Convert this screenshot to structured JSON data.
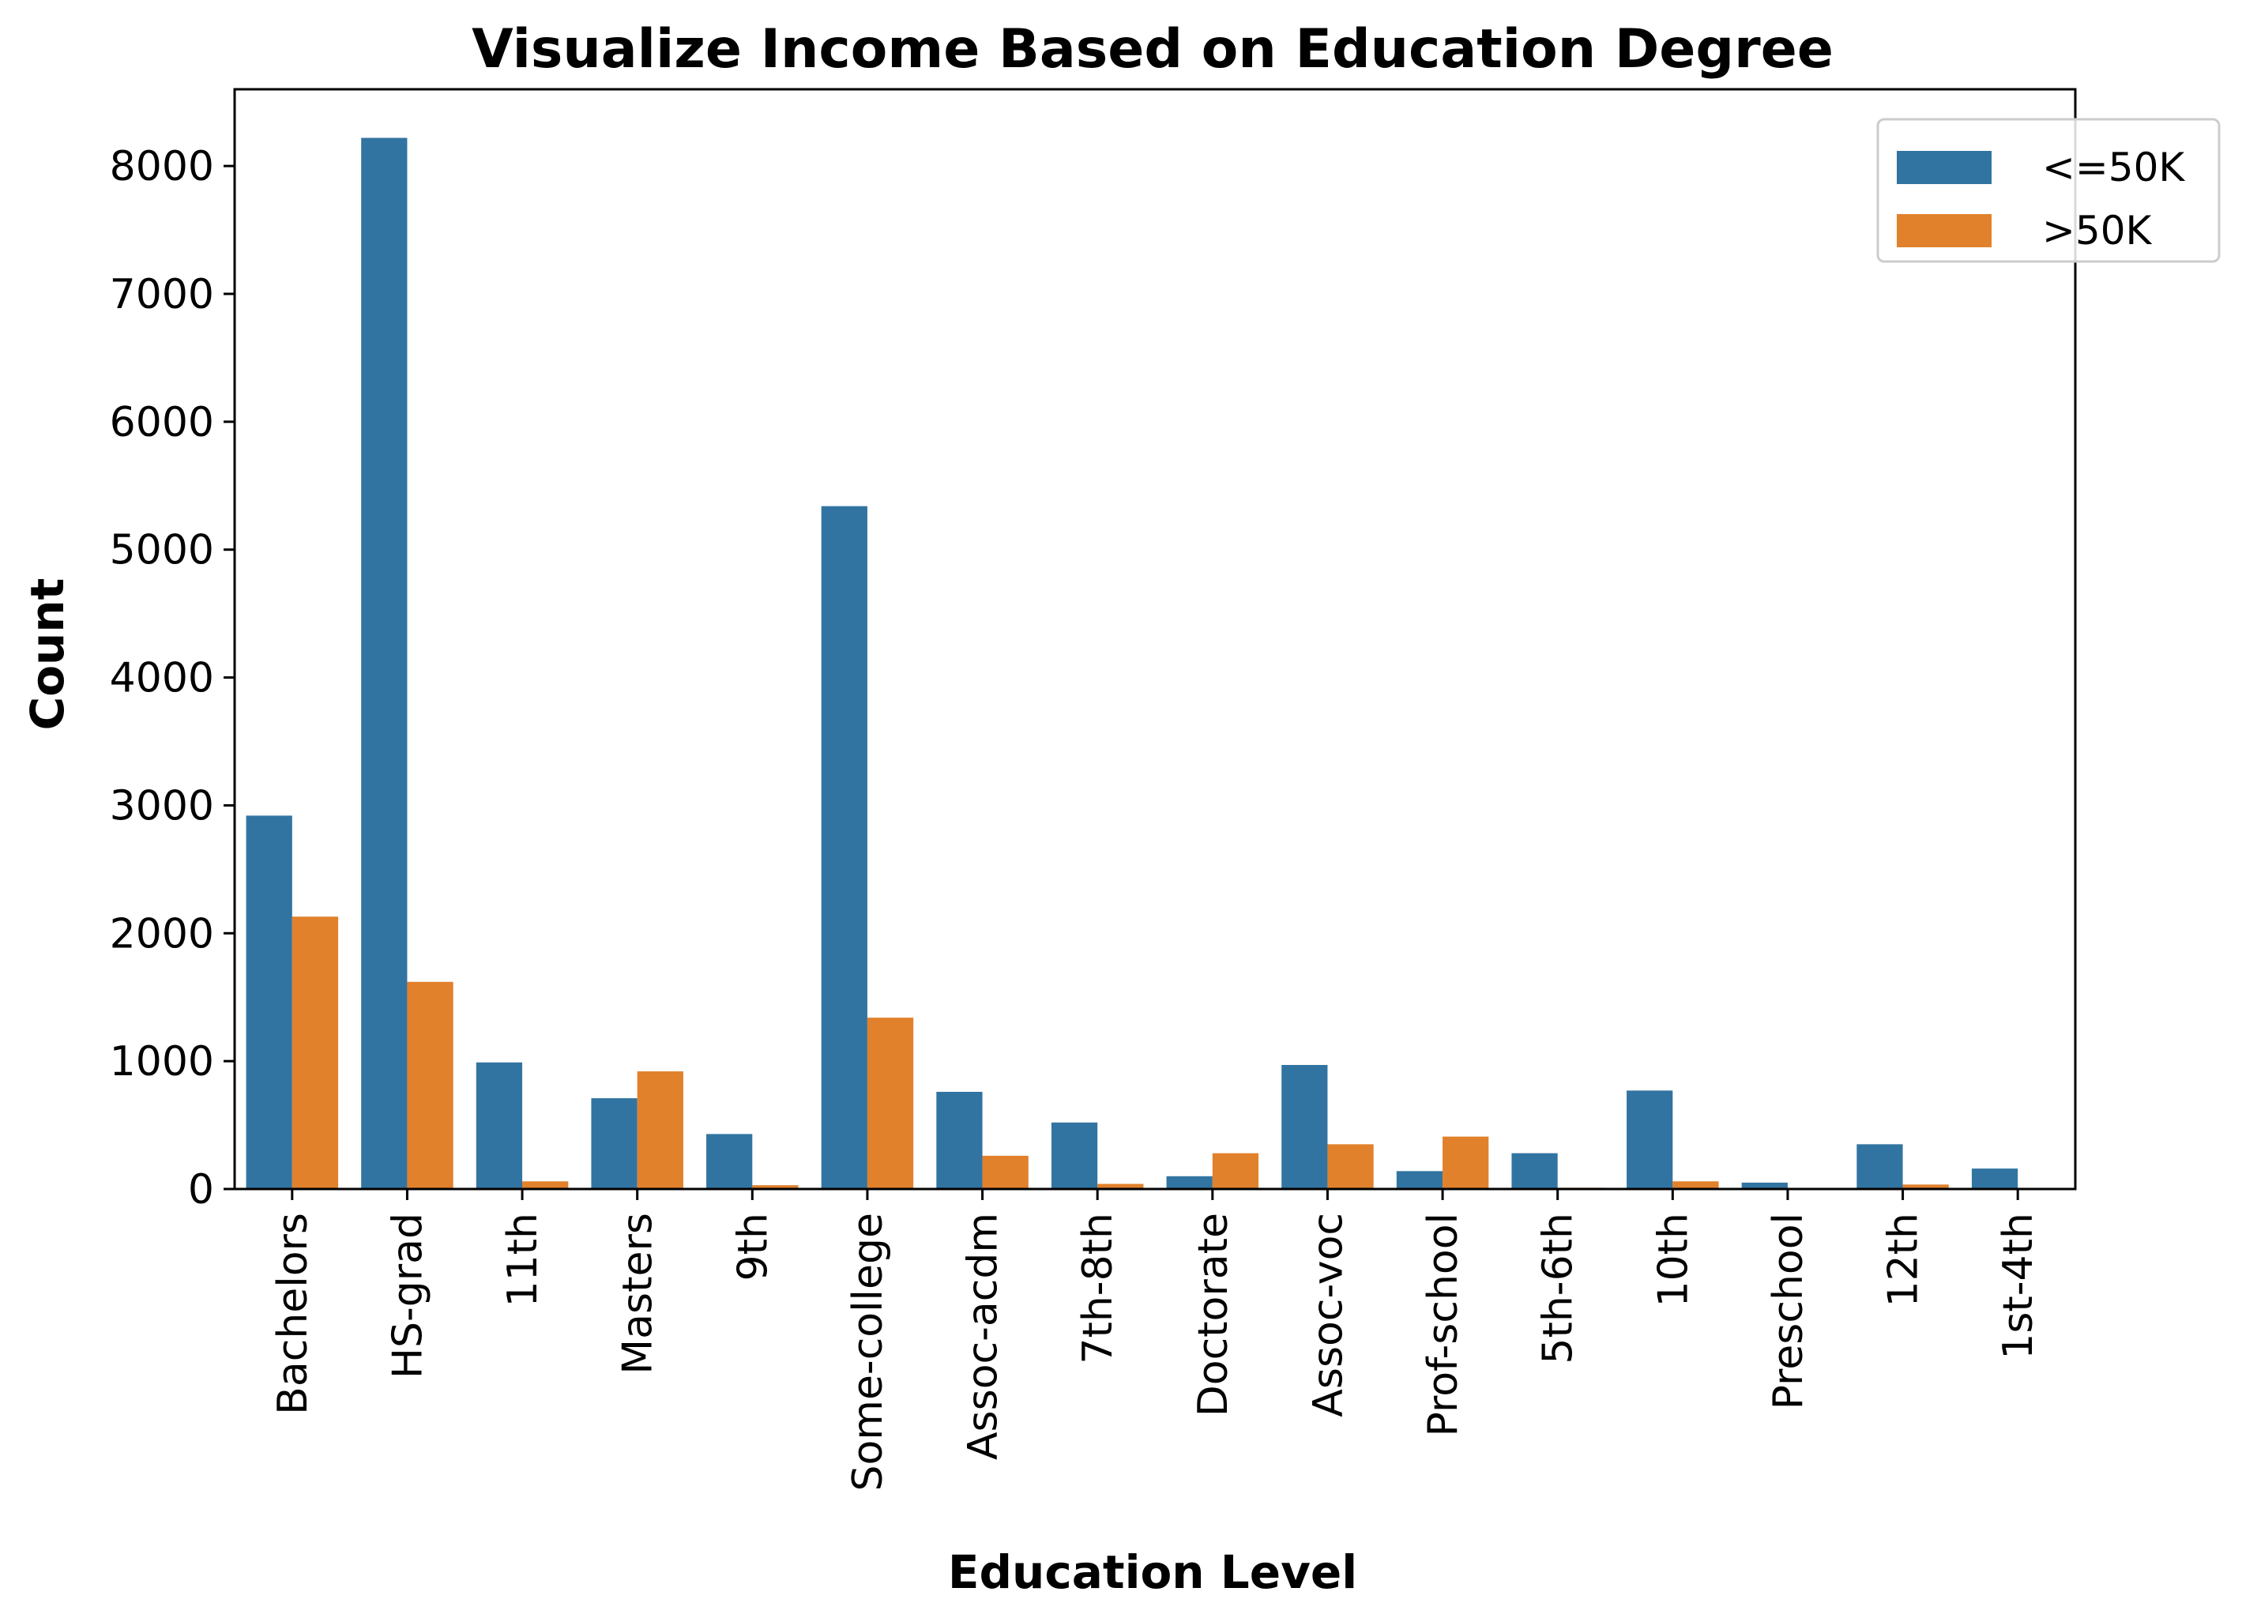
{
  "chart_data": {
    "type": "bar",
    "title": "Visualize Income Based on Education Degree",
    "xlabel": "Education Level",
    "ylabel": "Count",
    "ylim": [
      0,
      8600
    ],
    "yticks": [
      "0",
      "1000",
      "2000",
      "3000",
      "4000",
      "5000",
      "6000",
      "7000",
      "8000"
    ],
    "categories": [
      "Bachelors",
      "HS-grad",
      "11th",
      "Masters",
      "9th",
      "Some-college",
      "Assoc-acdm",
      "7th-8th",
      "Doctorate",
      "Assoc-voc",
      "Prof-school",
      "5th-6th",
      "10th",
      "Preschool",
      "12th",
      "1st-4th"
    ],
    "series": [
      {
        "name": "<=50K",
        "color": "#3274a1",
        "values": [
          2920,
          8220,
          990,
          710,
          430,
          5340,
          760,
          520,
          100,
          970,
          140,
          280,
          770,
          50,
          350,
          160
        ]
      },
      {
        "name": ">50K",
        "color": "#e1812c",
        "values": [
          2130,
          1620,
          60,
          920,
          30,
          1340,
          260,
          40,
          280,
          350,
          410,
          10,
          60,
          0,
          35,
          5
        ]
      }
    ],
    "legend_position": "top-right",
    "grid": false
  }
}
